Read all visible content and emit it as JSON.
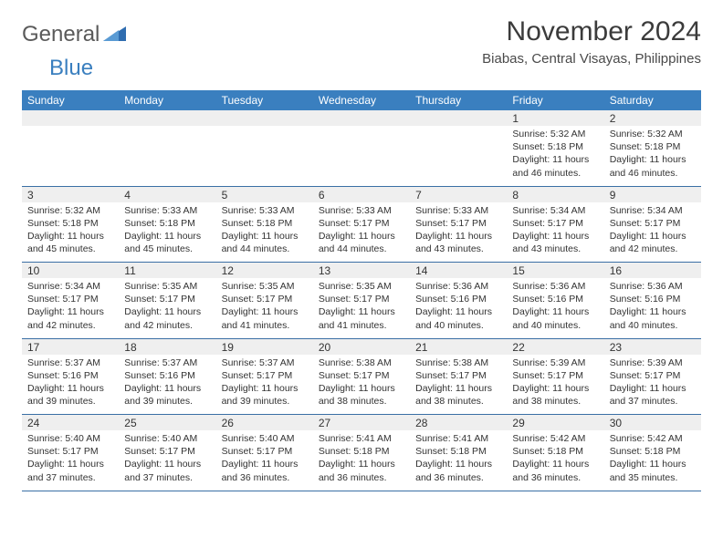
{
  "brand": {
    "word1": "General",
    "word2": "Blue"
  },
  "title": {
    "month": "November 2024",
    "location": "Biabas, Central Visayas, Philippines"
  },
  "style": {
    "accent": "#3a7fbf",
    "rule": "#3a6fa5",
    "shade": "#efefef",
    "text": "#333333",
    "title_fontsize": 30,
    "loc_fontsize": 15,
    "dayhead_fontsize": 12,
    "body_fontsize": 10.5,
    "page_bg": "#ffffff"
  },
  "daynames": [
    "Sunday",
    "Monday",
    "Tuesday",
    "Wednesday",
    "Thursday",
    "Friday",
    "Saturday"
  ],
  "weeks": [
    [
      null,
      null,
      null,
      null,
      null,
      {
        "n": "1",
        "sr": "5:32 AM",
        "ss": "5:18 PM",
        "d": "11 hours and 46 minutes."
      },
      {
        "n": "2",
        "sr": "5:32 AM",
        "ss": "5:18 PM",
        "d": "11 hours and 46 minutes."
      }
    ],
    [
      {
        "n": "3",
        "sr": "5:32 AM",
        "ss": "5:18 PM",
        "d": "11 hours and 45 minutes."
      },
      {
        "n": "4",
        "sr": "5:33 AM",
        "ss": "5:18 PM",
        "d": "11 hours and 45 minutes."
      },
      {
        "n": "5",
        "sr": "5:33 AM",
        "ss": "5:18 PM",
        "d": "11 hours and 44 minutes."
      },
      {
        "n": "6",
        "sr": "5:33 AM",
        "ss": "5:17 PM",
        "d": "11 hours and 44 minutes."
      },
      {
        "n": "7",
        "sr": "5:33 AM",
        "ss": "5:17 PM",
        "d": "11 hours and 43 minutes."
      },
      {
        "n": "8",
        "sr": "5:34 AM",
        "ss": "5:17 PM",
        "d": "11 hours and 43 minutes."
      },
      {
        "n": "9",
        "sr": "5:34 AM",
        "ss": "5:17 PM",
        "d": "11 hours and 42 minutes."
      }
    ],
    [
      {
        "n": "10",
        "sr": "5:34 AM",
        "ss": "5:17 PM",
        "d": "11 hours and 42 minutes."
      },
      {
        "n": "11",
        "sr": "5:35 AM",
        "ss": "5:17 PM",
        "d": "11 hours and 42 minutes."
      },
      {
        "n": "12",
        "sr": "5:35 AM",
        "ss": "5:17 PM",
        "d": "11 hours and 41 minutes."
      },
      {
        "n": "13",
        "sr": "5:35 AM",
        "ss": "5:17 PM",
        "d": "11 hours and 41 minutes."
      },
      {
        "n": "14",
        "sr": "5:36 AM",
        "ss": "5:16 PM",
        "d": "11 hours and 40 minutes."
      },
      {
        "n": "15",
        "sr": "5:36 AM",
        "ss": "5:16 PM",
        "d": "11 hours and 40 minutes."
      },
      {
        "n": "16",
        "sr": "5:36 AM",
        "ss": "5:16 PM",
        "d": "11 hours and 40 minutes."
      }
    ],
    [
      {
        "n": "17",
        "sr": "5:37 AM",
        "ss": "5:16 PM",
        "d": "11 hours and 39 minutes."
      },
      {
        "n": "18",
        "sr": "5:37 AM",
        "ss": "5:16 PM",
        "d": "11 hours and 39 minutes."
      },
      {
        "n": "19",
        "sr": "5:37 AM",
        "ss": "5:17 PM",
        "d": "11 hours and 39 minutes."
      },
      {
        "n": "20",
        "sr": "5:38 AM",
        "ss": "5:17 PM",
        "d": "11 hours and 38 minutes."
      },
      {
        "n": "21",
        "sr": "5:38 AM",
        "ss": "5:17 PM",
        "d": "11 hours and 38 minutes."
      },
      {
        "n": "22",
        "sr": "5:39 AM",
        "ss": "5:17 PM",
        "d": "11 hours and 38 minutes."
      },
      {
        "n": "23",
        "sr": "5:39 AM",
        "ss": "5:17 PM",
        "d": "11 hours and 37 minutes."
      }
    ],
    [
      {
        "n": "24",
        "sr": "5:40 AM",
        "ss": "5:17 PM",
        "d": "11 hours and 37 minutes."
      },
      {
        "n": "25",
        "sr": "5:40 AM",
        "ss": "5:17 PM",
        "d": "11 hours and 37 minutes."
      },
      {
        "n": "26",
        "sr": "5:40 AM",
        "ss": "5:17 PM",
        "d": "11 hours and 36 minutes."
      },
      {
        "n": "27",
        "sr": "5:41 AM",
        "ss": "5:18 PM",
        "d": "11 hours and 36 minutes."
      },
      {
        "n": "28",
        "sr": "5:41 AM",
        "ss": "5:18 PM",
        "d": "11 hours and 36 minutes."
      },
      {
        "n": "29",
        "sr": "5:42 AM",
        "ss": "5:18 PM",
        "d": "11 hours and 36 minutes."
      },
      {
        "n": "30",
        "sr": "5:42 AM",
        "ss": "5:18 PM",
        "d": "11 hours and 35 minutes."
      }
    ]
  ],
  "labels": {
    "sunrise": "Sunrise: ",
    "sunset": "Sunset: ",
    "daylight": "Daylight: "
  }
}
